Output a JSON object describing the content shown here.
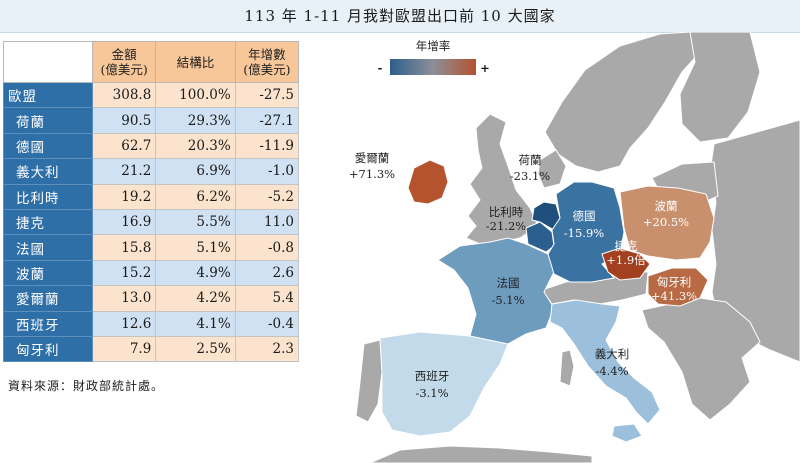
{
  "title": "113 年 1-11 月我對歐盟出口前 10 大國家",
  "table": {
    "headers": [
      {
        "line1": "金額",
        "line2": "(億美元)"
      },
      {
        "line1": "結構比",
        "line2": ""
      },
      {
        "line1": "年增數",
        "line2": "(億美元)"
      }
    ],
    "rows": [
      {
        "country": "歐盟",
        "amount": "308.8",
        "share": "100.0%",
        "growth": "-27.5"
      },
      {
        "country": "荷蘭",
        "amount": "90.5",
        "share": "29.3%",
        "growth": "-27.1"
      },
      {
        "country": "德國",
        "amount": "62.7",
        "share": "20.3%",
        "growth": "-11.9"
      },
      {
        "country": "義大利",
        "amount": "21.2",
        "share": "6.9%",
        "growth": "-1.0"
      },
      {
        "country": "比利時",
        "amount": "19.2",
        "share": "6.2%",
        "growth": "-5.2"
      },
      {
        "country": "捷克",
        "amount": "16.9",
        "share": "5.5%",
        "growth": "11.0"
      },
      {
        "country": "法國",
        "amount": "15.8",
        "share": "5.1%",
        "growth": "-0.8"
      },
      {
        "country": "波蘭",
        "amount": "15.2",
        "share": "4.9%",
        "growth": "2.6"
      },
      {
        "country": "愛爾蘭",
        "amount": "13.0",
        "share": "4.2%",
        "growth": "5.4"
      },
      {
        "country": "西班牙",
        "amount": "12.6",
        "share": "4.1%",
        "growth": "-0.4"
      },
      {
        "country": "匈牙利",
        "amount": "7.9",
        "share": "2.5%",
        "growth": "2.3"
      }
    ]
  },
  "source": "資料來源：財政部統計處。",
  "chart_data": {
    "type": "map",
    "legend": {
      "title": "年增率",
      "min_label": "-",
      "max_label": "+",
      "colors": [
        "#2c5f8a",
        "#b5532f"
      ]
    },
    "regions": [
      {
        "id": "ireland",
        "name": "愛爾蘭",
        "growth_label": "+71.3%",
        "color": "#b5532f"
      },
      {
        "id": "netherlands",
        "name": "荷蘭",
        "growth_label": "-23.1%",
        "color": "#1f4f7c"
      },
      {
        "id": "belgium",
        "name": "比利時",
        "growth_label": "-21.2%",
        "color": "#2a5f8f"
      },
      {
        "id": "germany",
        "name": "德國",
        "growth_label": "-15.9%",
        "color": "#3a72a2"
      },
      {
        "id": "poland",
        "name": "波蘭",
        "growth_label": "+20.5%",
        "color": "#c9906e"
      },
      {
        "id": "czech",
        "name": "捷克",
        "growth_label": "+1.9倍",
        "color": "#a3401f"
      },
      {
        "id": "hungary",
        "name": "匈牙利",
        "growth_label": "+41.3%",
        "color": "#b86a45"
      },
      {
        "id": "france",
        "name": "法國",
        "growth_label": "-5.1%",
        "color": "#6e9cbf"
      },
      {
        "id": "italy",
        "name": "義大利",
        "growth_label": "-4.4%",
        "color": "#9cc0db"
      },
      {
        "id": "spain",
        "name": "西班牙",
        "growth_label": "-3.1%",
        "color": "#c3daea"
      }
    ]
  }
}
